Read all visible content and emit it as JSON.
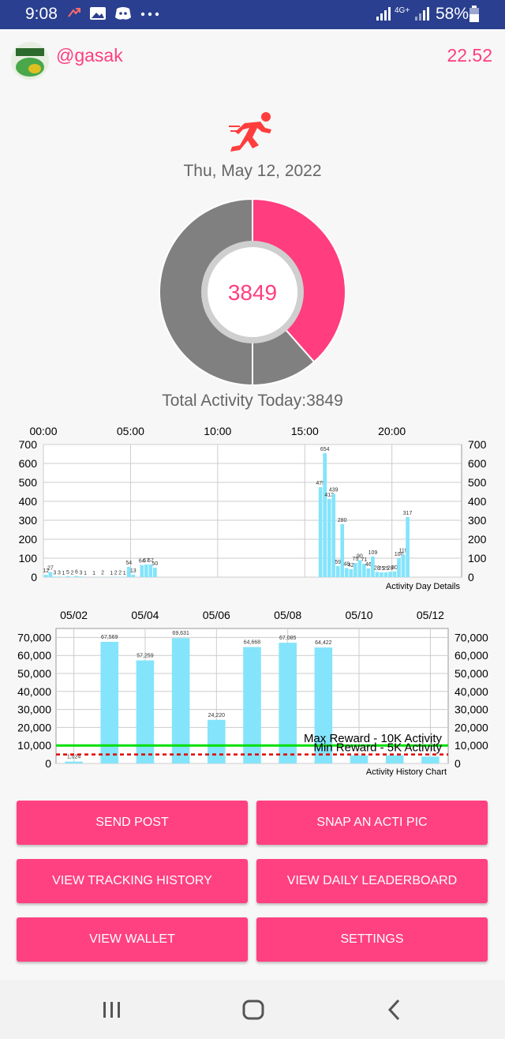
{
  "status_bar": {
    "time": "9:08",
    "battery_text": "58%",
    "network": "4G+"
  },
  "header": {
    "username": "@gasak",
    "balance": "22.52"
  },
  "activity": {
    "date": "Thu, May 12, 2022",
    "center_value": "3849",
    "total_label": "Total Activity Today:3849"
  },
  "donut_data": {
    "type": "pie",
    "slices": [
      {
        "name": "activity",
        "value": 3849,
        "color": "#ff3d7f"
      },
      {
        "name": "remaining-to-5k",
        "value": 1151,
        "color": "#808080"
      },
      {
        "name": "remaining-to-10k",
        "value": 5000,
        "color": "#808080"
      }
    ]
  },
  "colors": {
    "accent": "#ff4081",
    "bar": "#84e4fb",
    "max_line": "#00e000",
    "min_line": "#e00000"
  },
  "chart_data": [
    {
      "type": "bar",
      "caption": "Activity Day Details",
      "x_ticks": [
        "00:00",
        "05:00",
        "10:00",
        "15:00",
        "20:00"
      ],
      "y_ticks": [
        "0",
        "100",
        "200",
        "300",
        "400",
        "500",
        "600",
        "700"
      ],
      "ylim": [
        0,
        700
      ],
      "xlim_minutes": [
        0,
        1440
      ],
      "values": [
        [
          0,
          12
        ],
        [
          15,
          27
        ],
        [
          30,
          3
        ],
        [
          45,
          3
        ],
        [
          60,
          1
        ],
        [
          75,
          5
        ],
        [
          90,
          2
        ],
        [
          105,
          6
        ],
        [
          120,
          3
        ],
        [
          135,
          1
        ],
        [
          165,
          1
        ],
        [
          195,
          2
        ],
        [
          225,
          1
        ],
        [
          240,
          2
        ],
        [
          255,
          2
        ],
        [
          270,
          1
        ],
        [
          285,
          54
        ],
        [
          300,
          13
        ],
        [
          330,
          64
        ],
        [
          345,
          67
        ],
        [
          360,
          67
        ],
        [
          375,
          50
        ],
        [
          945,
          475
        ],
        [
          960,
          654
        ],
        [
          975,
          413
        ],
        [
          990,
          439
        ],
        [
          1005,
          59
        ],
        [
          1020,
          280
        ],
        [
          1035,
          48
        ],
        [
          1050,
          42
        ],
        [
          1065,
          75
        ],
        [
          1080,
          90
        ],
        [
          1095,
          71
        ],
        [
          1110,
          46
        ],
        [
          1125,
          109
        ],
        [
          1140,
          28
        ],
        [
          1155,
          25
        ],
        [
          1170,
          25
        ],
        [
          1185,
          28
        ],
        [
          1200,
          30
        ],
        [
          1215,
          100
        ],
        [
          1230,
          119
        ],
        [
          1245,
          317
        ]
      ]
    },
    {
      "type": "bar",
      "caption": "Activity History Chart",
      "x_ticks": [
        "05/02",
        "05/04",
        "05/06",
        "05/08",
        "05/10",
        "05/12"
      ],
      "y_ticks": [
        "0",
        "10,000",
        "20,000",
        "30,000",
        "40,000",
        "50,000",
        "60,000",
        "70,000"
      ],
      "ylim": [
        0,
        75000
      ],
      "categories": [
        "05/02",
        "05/03",
        "05/04",
        "05/05",
        "05/06",
        "05/07",
        "05/08",
        "05/09",
        "05/10",
        "05/11",
        "05/12"
      ],
      "values": [
        1024,
        67569,
        57259,
        69631,
        24220,
        64668,
        67085,
        64422,
        4500,
        4500,
        3849
      ],
      "value_labels": [
        "1,024",
        "67,569",
        "57,259",
        "69,631",
        "24,220",
        "64,668",
        "67,085",
        "64,422",
        "",
        "",
        ""
      ],
      "max_line": {
        "value": 10000,
        "label": "Max Reward - 10K Activity"
      },
      "min_line": {
        "value": 5000,
        "label": "Min Reward - 5K Activity"
      }
    }
  ],
  "buttons": [
    {
      "label": "SEND POST",
      "name": "send-post-button"
    },
    {
      "label": "SNAP AN ACTI PIC",
      "name": "snap-acti-pic-button"
    },
    {
      "label": "VIEW TRACKING HISTORY",
      "name": "view-tracking-history-button"
    },
    {
      "label": "VIEW DAILY LEADERBOARD",
      "name": "view-daily-leaderboard-button"
    },
    {
      "label": "VIEW WALLET",
      "name": "view-wallet-button"
    },
    {
      "label": "SETTINGS",
      "name": "settings-button"
    }
  ],
  "icons": {
    "runner": "runner-icon",
    "nav": [
      "recent-apps-icon",
      "home-icon",
      "back-icon"
    ]
  }
}
